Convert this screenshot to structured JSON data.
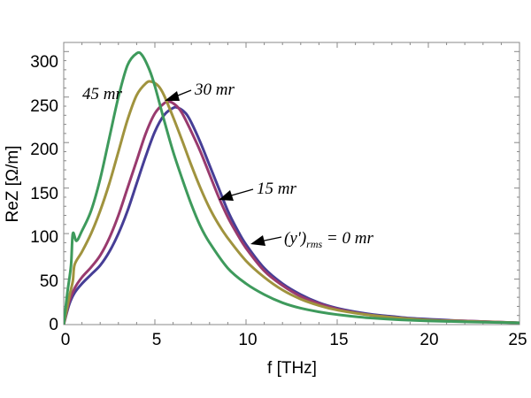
{
  "chart_data": {
    "type": "line",
    "title": "",
    "xlabel": "f [THz]",
    "ylabel": "ReZ [Ω/m]",
    "xlim": [
      0,
      25
    ],
    "ylim": [
      0,
      310
    ],
    "xticks": [
      "0",
      "5",
      "10",
      "15",
      "20",
      "25"
    ],
    "yticks": [
      "0",
      "50",
      "100",
      "150",
      "200",
      "250",
      "300"
    ],
    "series": [
      {
        "name": "(y')rms = 0 mr",
        "color": "#463e96",
        "x": [
          0,
          0.3,
          0.6,
          1,
          1.5,
          2,
          2.5,
          3,
          3.5,
          4,
          4.5,
          5,
          5.5,
          6,
          6.3,
          6.7,
          7,
          7.5,
          8,
          8.5,
          9,
          9.5,
          10,
          11,
          12,
          13,
          14,
          15,
          16,
          17,
          18,
          19,
          20,
          22,
          25
        ],
        "values": [
          0,
          22,
          35,
          45,
          55,
          65,
          80,
          100,
          125,
          155,
          185,
          212,
          230,
          238,
          238,
          232,
          222,
          200,
          175,
          150,
          125,
          105,
          88,
          62,
          45,
          33,
          24,
          18,
          14,
          11,
          9,
          7,
          6,
          4,
          2
        ]
      },
      {
        "name": "15 mr",
        "color": "#993a6e",
        "x": [
          0,
          0.3,
          0.6,
          1,
          1.5,
          2,
          2.5,
          3,
          3.5,
          4,
          4.5,
          5,
          5.5,
          5.8,
          6.2,
          6.5,
          7,
          7.5,
          8,
          8.5,
          9,
          9.5,
          10,
          11,
          12,
          13,
          14,
          15,
          16,
          17,
          18,
          20,
          22,
          25
        ],
        "values": [
          0,
          25,
          40,
          52,
          63,
          76,
          95,
          120,
          150,
          180,
          210,
          232,
          243,
          245,
          240,
          232,
          212,
          190,
          165,
          140,
          118,
          100,
          84,
          59,
          43,
          31,
          23,
          17,
          13,
          10,
          8,
          5,
          4,
          2
        ]
      },
      {
        "name": "30 mr",
        "color": "#a0933e",
        "x": [
          0,
          0.3,
          0.5,
          0.6,
          1,
          1.5,
          2,
          2.5,
          3,
          3.5,
          4,
          4.5,
          4.8,
          5.2,
          5.5,
          6,
          6.5,
          7,
          7.5,
          8,
          8.5,
          9,
          10,
          11,
          12,
          13,
          14,
          15,
          17,
          20,
          25
        ],
        "values": [
          0,
          30,
          48,
          66,
          80,
          100,
          125,
          155,
          190,
          225,
          252,
          265,
          267,
          262,
          252,
          228,
          202,
          175,
          150,
          128,
          110,
          95,
          70,
          52,
          38,
          28,
          21,
          16,
          10,
          5,
          2
        ]
      },
      {
        "name": "45 mr",
        "color": "#3e9a5c",
        "x": [
          0,
          0.2,
          0.4,
          0.5,
          0.7,
          1,
          1.5,
          2,
          2.5,
          3,
          3.5,
          4,
          4.3,
          4.7,
          5,
          5.5,
          6,
          6.5,
          7,
          7.5,
          8,
          9,
          10,
          11,
          12,
          13,
          14,
          15,
          17,
          20,
          25
        ],
        "values": [
          0,
          35,
          65,
          100,
          92,
          103,
          125,
          160,
          205,
          250,
          285,
          298,
          296,
          280,
          262,
          225,
          190,
          160,
          132,
          108,
          90,
          62,
          45,
          33,
          24,
          18,
          14,
          11,
          7,
          4,
          2
        ]
      }
    ],
    "annotations": [
      {
        "label": "45 mr"
      },
      {
        "label": "30 mr"
      },
      {
        "label": "15 mr"
      },
      {
        "label_main": "(y')",
        "label_sub": "rms",
        "label_tail": " = 0 mr"
      }
    ]
  }
}
